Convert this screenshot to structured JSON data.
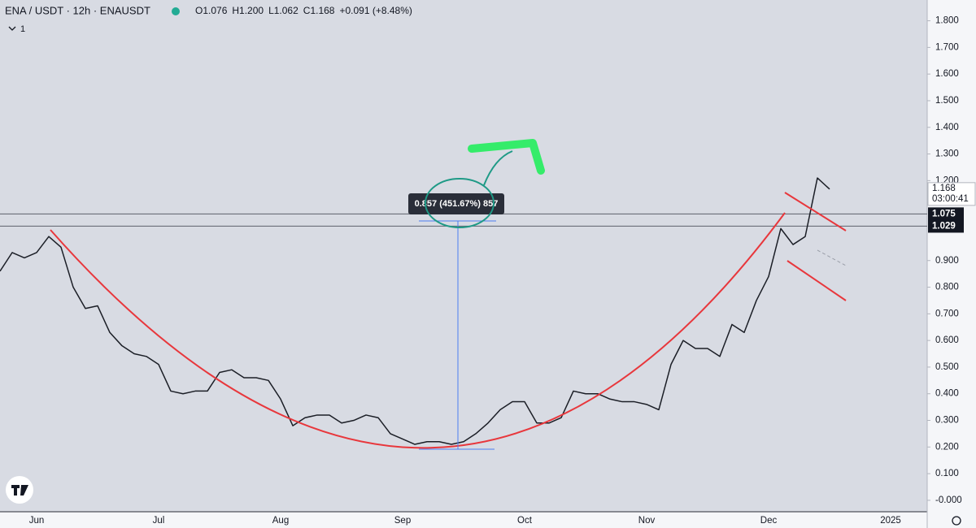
{
  "chart_data": {
    "type": "line",
    "title": "ENA / USDT · 12h · ENAUSDT",
    "ohlc": [
      "O1.076",
      "H1.200",
      "L1.062",
      "C1.168",
      "+0.091 (+8.48%)"
    ],
    "indicator_count": "1",
    "categories": [
      null,
      null,
      null,
      "Jun",
      null,
      null,
      null,
      null,
      null,
      null,
      null,
      null,
      null,
      "Jul",
      null,
      null,
      null,
      null,
      null,
      null,
      null,
      null,
      null,
      "Aug",
      null,
      null,
      null,
      null,
      null,
      null,
      null,
      null,
      null,
      "Sep",
      null,
      null,
      null,
      null,
      null,
      null,
      null,
      null,
      null,
      "Oct",
      null,
      null,
      null,
      null,
      null,
      null,
      null,
      null,
      null,
      "Nov",
      null,
      null,
      null,
      null,
      null,
      null,
      null,
      null,
      null,
      "Dec",
      null,
      null,
      null,
      null,
      null,
      null,
      null,
      null,
      null,
      "2025",
      null,
      null
    ],
    "values": [
      0.86,
      0.93,
      0.91,
      0.93,
      0.99,
      0.95,
      0.8,
      0.72,
      0.73,
      0.63,
      0.58,
      0.55,
      0.54,
      0.51,
      0.41,
      0.4,
      0.41,
      0.41,
      0.48,
      0.49,
      0.46,
      0.46,
      0.45,
      0.38,
      0.28,
      0.31,
      0.32,
      0.32,
      0.29,
      0.3,
      0.32,
      0.31,
      0.25,
      0.23,
      0.21,
      0.22,
      0.22,
      0.21,
      0.22,
      0.25,
      0.29,
      0.34,
      0.37,
      0.37,
      0.29,
      0.29,
      0.31,
      0.41,
      0.4,
      0.4,
      0.38,
      0.37,
      0.37,
      0.36,
      0.34,
      0.51,
      0.6,
      0.57,
      0.57,
      0.54,
      0.66,
      0.63,
      0.75,
      0.84,
      1.02,
      0.96,
      0.99,
      1.21,
      1.168,
      null,
      null,
      null,
      null,
      null,
      null,
      null
    ],
    "color": "#1b1e26",
    "ylim": [
      -0.043,
      1.878
    ],
    "yticks": [
      {
        "value": 1.8,
        "label": "1.800"
      },
      {
        "value": 1.7,
        "label": "1.700"
      },
      {
        "value": 1.6,
        "label": "1.600"
      },
      {
        "value": 1.5,
        "label": "1.500"
      },
      {
        "value": 1.4,
        "label": "1.400"
      },
      {
        "value": 1.3,
        "label": "1.300"
      },
      {
        "value": 1.2,
        "label": "1.200"
      },
      {
        "value": 0.9,
        "label": "0.900"
      },
      {
        "value": 0.8,
        "label": "0.800"
      },
      {
        "value": 0.7,
        "label": "0.700"
      },
      {
        "value": 0.6,
        "label": "0.600"
      },
      {
        "value": 0.5,
        "label": "0.500"
      },
      {
        "value": 0.4,
        "label": "0.400"
      },
      {
        "value": 0.3,
        "label": "0.300"
      },
      {
        "value": 0.2,
        "label": "0.200"
      },
      {
        "value": 0.1,
        "label": "0.100"
      },
      {
        "value": 0,
        "label": "-0.000"
      }
    ],
    "price_lines": [
      1.075,
      1.029
    ],
    "countdown": "03:00:41",
    "measure_label": "0.857 (451.67%) 857"
  }
}
